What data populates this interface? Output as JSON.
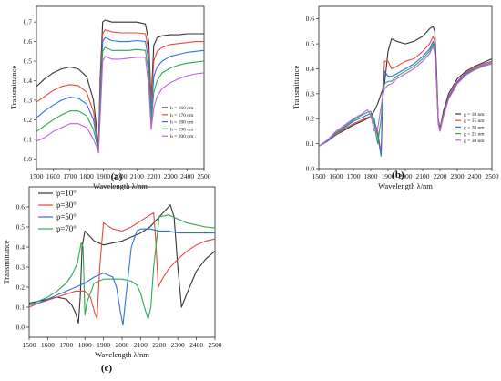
{
  "chart_data": [
    {
      "panel": "(a)",
      "type": "line",
      "xlabel": "Wavelength λ/nm",
      "ylabel": "Transmittance",
      "xlim": [
        1500,
        2500
      ],
      "ylim": [
        -0.05,
        0.78
      ],
      "xticks": [
        1500,
        1600,
        1700,
        1800,
        1900,
        2000,
        2100,
        2200,
        2300,
        2400,
        2500
      ],
      "yticks": [
        0.0,
        0.1,
        0.2,
        0.3,
        0.4,
        0.5,
        0.6,
        0.7
      ],
      "legend_position": "bottom-right",
      "x": [
        1500,
        1550,
        1600,
        1650,
        1700,
        1750,
        1800,
        1840,
        1860,
        1870,
        1880,
        1895,
        1910,
        1950,
        2000,
        2050,
        2100,
        2150,
        2170,
        2185,
        2200,
        2220,
        2250,
        2300,
        2350,
        2400,
        2450,
        2500
      ],
      "series": [
        {
          "name": "h = 160 nm",
          "color": "#333333",
          "values": [
            0.37,
            0.41,
            0.44,
            0.46,
            0.47,
            0.46,
            0.42,
            0.3,
            0.15,
            0.05,
            0.4,
            0.7,
            0.71,
            0.7,
            0.7,
            0.7,
            0.7,
            0.69,
            0.6,
            0.3,
            0.58,
            0.62,
            0.63,
            0.635,
            0.635,
            0.64,
            0.64,
            0.64
          ]
        },
        {
          "name": "h = 170 nm",
          "color": "#e8483f",
          "values": [
            0.29,
            0.32,
            0.35,
            0.37,
            0.38,
            0.375,
            0.34,
            0.24,
            0.12,
            0.045,
            0.35,
            0.64,
            0.66,
            0.65,
            0.645,
            0.645,
            0.645,
            0.64,
            0.55,
            0.28,
            0.5,
            0.55,
            0.57,
            0.585,
            0.59,
            0.595,
            0.6,
            0.6
          ]
        },
        {
          "name": "h = 180 nm",
          "color": "#2f6fe0",
          "values": [
            0.21,
            0.245,
            0.275,
            0.3,
            0.315,
            0.31,
            0.28,
            0.2,
            0.1,
            0.04,
            0.3,
            0.6,
            0.62,
            0.605,
            0.6,
            0.6,
            0.605,
            0.6,
            0.5,
            0.22,
            0.42,
            0.47,
            0.5,
            0.525,
            0.535,
            0.545,
            0.55,
            0.555
          ]
        },
        {
          "name": "h = 190 nm",
          "color": "#2ea84c",
          "values": [
            0.14,
            0.17,
            0.2,
            0.225,
            0.245,
            0.245,
            0.22,
            0.15,
            0.08,
            0.035,
            0.26,
            0.55,
            0.57,
            0.555,
            0.555,
            0.555,
            0.56,
            0.555,
            0.44,
            0.18,
            0.34,
            0.4,
            0.44,
            0.465,
            0.48,
            0.49,
            0.495,
            0.5
          ]
        },
        {
          "name": "h = 200 nm",
          "color": "#c060e0",
          "values": [
            0.09,
            0.11,
            0.14,
            0.16,
            0.18,
            0.18,
            0.16,
            0.1,
            0.06,
            0.03,
            0.2,
            0.5,
            0.525,
            0.51,
            0.51,
            0.515,
            0.52,
            0.52,
            0.37,
            0.15,
            0.26,
            0.32,
            0.36,
            0.39,
            0.41,
            0.425,
            0.435,
            0.44
          ]
        }
      ]
    },
    {
      "panel": "(b)",
      "type": "line",
      "xlabel": "Wavelength λ/nm",
      "ylabel": "Transmittance",
      "xlim": [
        1500,
        2500
      ],
      "ylim": [
        0.0,
        0.65
      ],
      "xticks": [
        1500,
        1600,
        1700,
        1800,
        1900,
        2000,
        2100,
        2200,
        2300,
        2400,
        2500
      ],
      "yticks": [
        0.0,
        0.1,
        0.2,
        0.3,
        0.4,
        0.5,
        0.6
      ],
      "legend_position": "bottom-right",
      "x": [
        1500,
        1550,
        1600,
        1650,
        1700,
        1750,
        1780,
        1800,
        1820,
        1840,
        1860,
        1870,
        1880,
        1900,
        1920,
        1950,
        2000,
        2050,
        2100,
        2140,
        2160,
        2170,
        2180,
        2190,
        2200,
        2220,
        2250,
        2300,
        2350,
        2400,
        2450,
        2500
      ],
      "series": [
        {
          "name": "g = 10 nm",
          "color": "#333333",
          "values": [
            0.09,
            0.11,
            0.135,
            0.155,
            0.175,
            0.19,
            0.2,
            0.21,
            0.23,
            0.26,
            0.3,
            0.32,
            0.34,
            0.47,
            0.52,
            0.51,
            0.5,
            0.51,
            0.53,
            0.56,
            0.57,
            0.55,
            0.4,
            0.2,
            0.16,
            0.23,
            0.3,
            0.36,
            0.39,
            0.41,
            0.425,
            0.44
          ]
        },
        {
          "name": "g = 15 nm",
          "color": "#e8483f",
          "values": [
            0.09,
            0.11,
            0.135,
            0.16,
            0.18,
            0.195,
            0.205,
            0.21,
            0.19,
            0.15,
            0.06,
            0.33,
            0.43,
            0.43,
            0.4,
            0.41,
            0.43,
            0.44,
            0.47,
            0.5,
            0.53,
            0.51,
            0.38,
            0.19,
            0.155,
            0.22,
            0.29,
            0.35,
            0.385,
            0.405,
            0.42,
            0.43
          ]
        },
        {
          "name": "g = 20 nm",
          "color": "#2f6fe0",
          "values": [
            0.09,
            0.11,
            0.14,
            0.165,
            0.19,
            0.205,
            0.215,
            0.22,
            0.2,
            0.13,
            0.05,
            0.3,
            0.39,
            0.37,
            0.37,
            0.38,
            0.4,
            0.42,
            0.45,
            0.48,
            0.51,
            0.49,
            0.36,
            0.185,
            0.15,
            0.215,
            0.285,
            0.345,
            0.38,
            0.4,
            0.415,
            0.425
          ]
        },
        {
          "name": "g = 25 nm",
          "color": "#2ea84c",
          "values": [
            0.09,
            0.115,
            0.145,
            0.17,
            0.195,
            0.215,
            0.225,
            0.23,
            0.18,
            0.1,
            0.2,
            0.29,
            0.34,
            0.35,
            0.35,
            0.37,
            0.39,
            0.41,
            0.44,
            0.47,
            0.5,
            0.47,
            0.35,
            0.18,
            0.15,
            0.21,
            0.28,
            0.34,
            0.375,
            0.4,
            0.41,
            0.42
          ]
        },
        {
          "name": "g = 30 nm",
          "color": "#c060e0",
          "values": [
            0.09,
            0.115,
            0.15,
            0.175,
            0.2,
            0.22,
            0.235,
            0.215,
            0.15,
            0.16,
            0.25,
            0.29,
            0.32,
            0.335,
            0.34,
            0.36,
            0.38,
            0.4,
            0.43,
            0.46,
            0.49,
            0.46,
            0.34,
            0.18,
            0.15,
            0.21,
            0.28,
            0.34,
            0.375,
            0.395,
            0.41,
            0.42
          ]
        }
      ]
    },
    {
      "panel": "(c)",
      "type": "line",
      "xlabel": "Wavelength λ/nm",
      "ylabel": "Transmittance",
      "xlim": [
        1500,
        2500
      ],
      "ylim": [
        -0.05,
        0.7
      ],
      "xticks": [
        1500,
        1600,
        1700,
        1800,
        1900,
        2000,
        2100,
        2200,
        2300,
        2400,
        2500
      ],
      "yticks": [
        0.0,
        0.1,
        0.2,
        0.3,
        0.4,
        0.5,
        0.6
      ],
      "legend_position": "top-left",
      "series": [
        {
          "name": "φ=10°",
          "color": "#333333",
          "x": [
            1500,
            1550,
            1600,
            1650,
            1700,
            1730,
            1750,
            1765,
            1775,
            1785,
            1800,
            1850,
            1900,
            1950,
            2000,
            2050,
            2100,
            2150,
            2200,
            2240,
            2260,
            2280,
            2300,
            2320,
            2350,
            2400,
            2450,
            2500
          ],
          "values": [
            0.12,
            0.13,
            0.14,
            0.15,
            0.14,
            0.11,
            0.07,
            0.02,
            0.15,
            0.4,
            0.48,
            0.43,
            0.41,
            0.42,
            0.43,
            0.45,
            0.47,
            0.5,
            0.55,
            0.59,
            0.61,
            0.55,
            0.3,
            0.1,
            0.17,
            0.28,
            0.34,
            0.38
          ]
        },
        {
          "name": "φ=30°",
          "color": "#e8483f",
          "x": [
            1500,
            1550,
            1600,
            1650,
            1700,
            1750,
            1800,
            1830,
            1850,
            1865,
            1880,
            1900,
            1950,
            2000,
            2050,
            2100,
            2150,
            2170,
            2180,
            2195,
            2210,
            2250,
            2300,
            2350,
            2400,
            2450,
            2500
          ],
          "values": [
            0.1,
            0.12,
            0.135,
            0.15,
            0.165,
            0.18,
            0.18,
            0.15,
            0.08,
            0.04,
            0.3,
            0.52,
            0.49,
            0.48,
            0.5,
            0.53,
            0.56,
            0.57,
            0.45,
            0.2,
            0.23,
            0.29,
            0.34,
            0.38,
            0.41,
            0.43,
            0.44
          ]
        },
        {
          "name": "φ=50°",
          "color": "#2f6fe0",
          "x": [
            1500,
            1550,
            1600,
            1650,
            1700,
            1750,
            1800,
            1850,
            1900,
            1950,
            1970,
            1990,
            2005,
            2020,
            2050,
            2080,
            2100,
            2150,
            2200,
            2250,
            2300,
            2350,
            2400,
            2450,
            2500
          ],
          "values": [
            0.11,
            0.12,
            0.14,
            0.16,
            0.18,
            0.2,
            0.22,
            0.25,
            0.27,
            0.25,
            0.2,
            0.08,
            0.01,
            0.15,
            0.4,
            0.48,
            0.49,
            0.49,
            0.48,
            0.48,
            0.47,
            0.47,
            0.47,
            0.47,
            0.47
          ]
        },
        {
          "name": "φ=70°",
          "color": "#2ea84c",
          "x": [
            1500,
            1550,
            1600,
            1650,
            1700,
            1730,
            1760,
            1780,
            1790,
            1800,
            1810,
            1850,
            1900,
            1950,
            2000,
            2050,
            2080,
            2100,
            2120,
            2140,
            2155,
            2170,
            2200,
            2250,
            2300,
            2350,
            2400,
            2450,
            2500
          ],
          "values": [
            0.11,
            0.13,
            0.15,
            0.18,
            0.22,
            0.26,
            0.32,
            0.42,
            0.4,
            0.06,
            0.12,
            0.22,
            0.24,
            0.24,
            0.24,
            0.23,
            0.21,
            0.17,
            0.1,
            0.04,
            0.1,
            0.3,
            0.55,
            0.56,
            0.54,
            0.52,
            0.51,
            0.5,
            0.495
          ]
        }
      ]
    }
  ]
}
